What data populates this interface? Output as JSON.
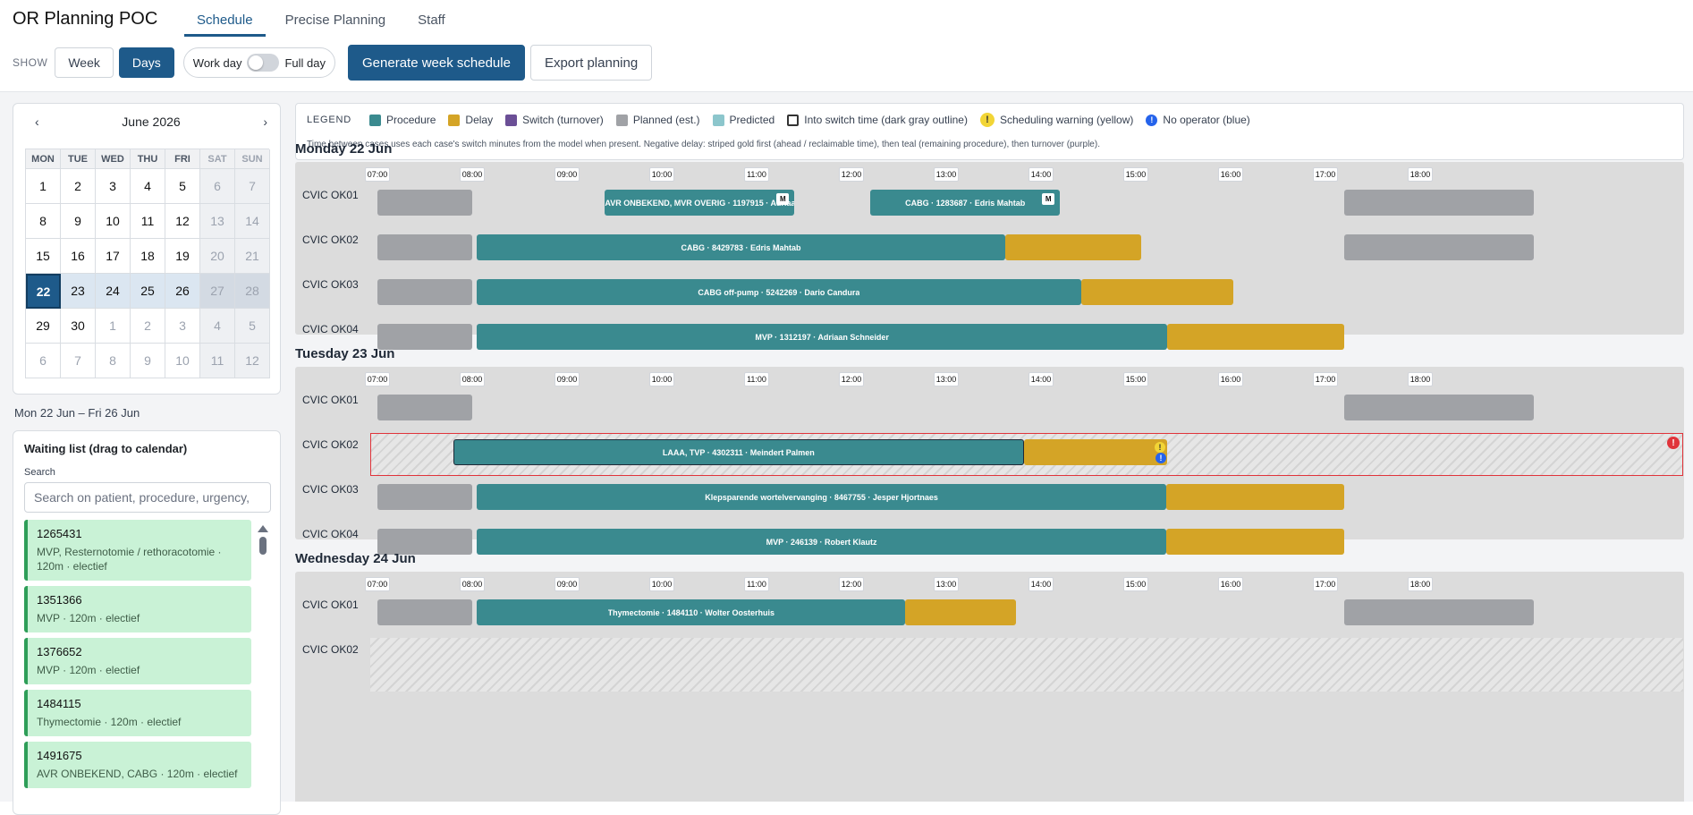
{
  "app": {
    "title": "OR Planning POC"
  },
  "tabs": [
    {
      "label": "Schedule",
      "active": true
    },
    {
      "label": "Precise Planning",
      "active": false
    },
    {
      "label": "Staff",
      "active": false
    }
  ],
  "controls": {
    "show_label": "SHOW",
    "week_label": "Week",
    "days_label": "Days",
    "workday_label": "Work day",
    "fullday_label": "Full day",
    "generate_label": "Generate week schedule",
    "export_label": "Export planning"
  },
  "calendar": {
    "month": "June 2026",
    "prev": "‹",
    "next": "›",
    "dow": [
      "MON",
      "TUE",
      "WED",
      "THU",
      "FRI",
      "SAT",
      "SUN"
    ],
    "weeks": [
      [
        "1",
        "2",
        "3",
        "4",
        "5",
        "6",
        "7"
      ],
      [
        "8",
        "9",
        "10",
        "11",
        "12",
        "13",
        "14"
      ],
      [
        "15",
        "16",
        "17",
        "18",
        "19",
        "20",
        "21"
      ],
      [
        "22",
        "23",
        "24",
        "25",
        "26",
        "27",
        "28"
      ],
      [
        "29",
        "30",
        "1",
        "2",
        "3",
        "4",
        "5"
      ],
      [
        "6",
        "7",
        "8",
        "9",
        "10",
        "11",
        "12"
      ]
    ],
    "selected": "22"
  },
  "range_label": "Mon 22 Jun – Fri 26 Jun",
  "waiting_list": {
    "title": "Waiting list (drag to calendar)",
    "search_label": "Search",
    "search_placeholder": "Search on patient, procedure, urgency,",
    "items": [
      {
        "id": "1265431",
        "desc": "MVP, Resternotomie / rethoracotomie · 120m · electief"
      },
      {
        "id": "1351366",
        "desc": "MVP · 120m · electief"
      },
      {
        "id": "1376652",
        "desc": "MVP · 120m · electief"
      },
      {
        "id": "1484115",
        "desc": "Thymectomie · 120m · electief"
      },
      {
        "id": "1491675",
        "desc": "AVR ONBEKEND, CABG · 120m · electief"
      }
    ]
  },
  "legend": {
    "title": "LEGEND",
    "items": {
      "procedure": "Procedure",
      "delay": "Delay",
      "switch": "Switch (turnover)",
      "planned": "Planned (est.)",
      "predicted": "Predicted",
      "into_switch": "Into switch time (dark gray outline)",
      "warning": "Scheduling warning (yellow)",
      "no_operator": "No operator (blue)"
    },
    "colors": {
      "procedure": "#3a8a8f",
      "delay": "#d4a426",
      "switch": "#6b4f96",
      "planned": "#a0a2a6",
      "predicted": "#8cc6cc"
    },
    "note": "Time between cases uses each case's switch minutes from the model when present. Negative delay: striped gold first (ahead / reclaimable time), then teal (remaining procedure), then turnover (purple)."
  },
  "hours": [
    "07:00",
    "08:00",
    "09:00",
    "10:00",
    "11:00",
    "12:00",
    "13:00",
    "14:00",
    "15:00",
    "16:00",
    "17:00",
    "18:00"
  ],
  "days": [
    {
      "title": "Monday 22 Jun",
      "rooms": [
        {
          "name": "CVIC OK01",
          "cases": [
            {
              "label": "AVR ONBEKEND, MVR OVERIG · 1197915 · Adriaan S...",
              "badge": "M"
            },
            {
              "label": "CABG · 1283687 · Edris Mahtab",
              "badge": "M"
            }
          ]
        },
        {
          "name": "CVIC OK02",
          "cases": [
            {
              "label": "CABG · 8429783 · Edris Mahtab"
            }
          ]
        },
        {
          "name": "CVIC OK03",
          "cases": [
            {
              "label": "CABG off-pump · 5242269 · Dario Candura"
            }
          ]
        },
        {
          "name": "CVIC OK04",
          "cases": [
            {
              "label": "MVP · 1312197 · Adriaan Schneider"
            }
          ]
        }
      ]
    },
    {
      "title": "Tuesday 23 Jun",
      "rooms": [
        {
          "name": "CVIC OK01",
          "cases": []
        },
        {
          "name": "CVIC OK02",
          "cases": [
            {
              "label": "LAAA, TVP · 4302311 · Meindert Palmen"
            }
          ]
        },
        {
          "name": "CVIC OK03",
          "cases": [
            {
              "label": "Klepsparende wortelvervanging · 8467755 · Jesper Hjortnaes"
            }
          ]
        },
        {
          "name": "CVIC OK04",
          "cases": [
            {
              "label": "MVP · 246139 · Robert Klautz"
            }
          ]
        }
      ]
    },
    {
      "title": "Wednesday 24 Jun",
      "rooms": [
        {
          "name": "CVIC OK01",
          "cases": [
            {
              "label": "Thymectomie · 1484110 · Wolter Oosterhuis"
            }
          ]
        },
        {
          "name": "CVIC OK02",
          "cases": []
        }
      ]
    }
  ]
}
